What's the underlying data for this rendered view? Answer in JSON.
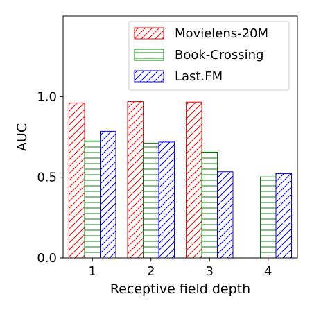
{
  "chart_data": {
    "type": "bar",
    "title": "",
    "xlabel": "Receptive field depth",
    "ylabel": "AUC",
    "categories": [
      "1",
      "2",
      "3",
      "4"
    ],
    "ylim": [
      0,
      1.5
    ],
    "yticks": [
      0.0,
      0.5,
      1.0
    ],
    "ytick_labels": [
      "0.0",
      "0.5",
      "1.0"
    ],
    "grid": false,
    "legend_position": "top-right",
    "series": [
      {
        "name": "Movielens-20M",
        "values": [
          0.961,
          0.969,
          0.966,
          null
        ],
        "color": "#ff0000",
        "hatch": "diagonal"
      },
      {
        "name": "Book-Crossing",
        "values": [
          0.725,
          0.712,
          0.656,
          0.502
        ],
        "color": "#008000",
        "hatch": "horizontal"
      },
      {
        "name": "Last.FM",
        "values": [
          0.785,
          0.718,
          0.534,
          0.522
        ],
        "color": "#0000ff",
        "hatch": "diagonal"
      }
    ]
  }
}
